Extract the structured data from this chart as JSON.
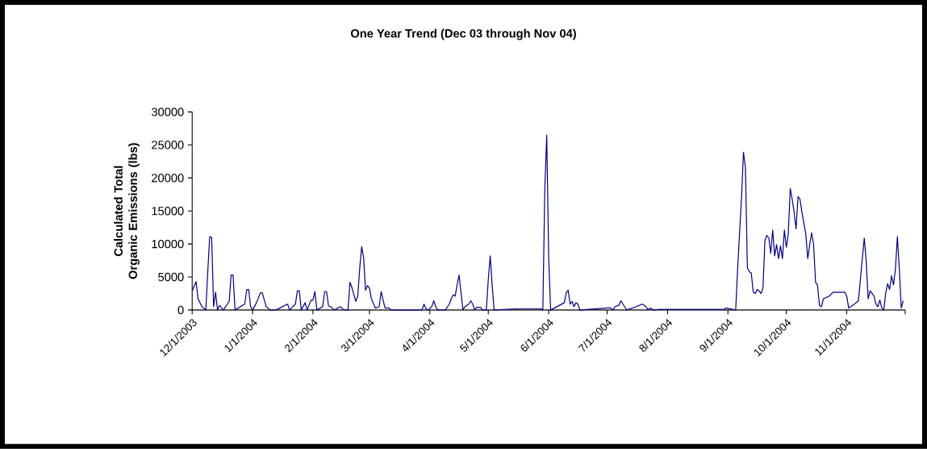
{
  "chart_data": {
    "type": "line",
    "title": "One Year Trend (Dec 03  through Nov 04)",
    "ylabel": "Calculated Total Organic Emissions (lbs)",
    "x": [
      "2003-12-01",
      "2003-12-03",
      "2003-12-04",
      "2003-12-06",
      "2003-12-08",
      "2003-12-09",
      "2003-12-10",
      "2003-12-11",
      "2003-12-12",
      "2003-12-13",
      "2003-12-14",
      "2003-12-15",
      "2003-12-17",
      "2003-12-20",
      "2003-12-21",
      "2003-12-22",
      "2003-12-23",
      "2003-12-28",
      "2003-12-29",
      "2003-12-30",
      "2003-12-31",
      "2004-01-01",
      "2004-01-03",
      "2004-01-05",
      "2004-01-06",
      "2004-01-08",
      "2004-01-10",
      "2004-01-13",
      "2004-01-19",
      "2004-01-20",
      "2004-01-23",
      "2004-01-24",
      "2004-01-25",
      "2004-01-26",
      "2004-01-28",
      "2004-01-29",
      "2004-01-31",
      "2004-02-01",
      "2004-02-02",
      "2004-02-03",
      "2004-02-06",
      "2004-02-07",
      "2004-02-08",
      "2004-02-09",
      "2004-02-10",
      "2004-02-12",
      "2004-02-15",
      "2004-02-17",
      "2004-02-19",
      "2004-02-20",
      "2004-02-21",
      "2004-02-23",
      "2004-02-24",
      "2004-02-25",
      "2004-02-26",
      "2004-02-27",
      "2004-02-28",
      "2004-02-29",
      "2004-03-01",
      "2004-03-02",
      "2004-03-04",
      "2004-03-06",
      "2004-03-07",
      "2004-03-08",
      "2004-03-09",
      "2004-03-11",
      "2004-03-12",
      "2004-03-28",
      "2004-03-29",
      "2004-03-30",
      "2004-03-31",
      "2004-04-02",
      "2004-04-03",
      "2004-04-04",
      "2004-04-05",
      "2004-04-09",
      "2004-04-11",
      "2004-04-12",
      "2004-04-13",
      "2004-04-14",
      "2004-04-15",
      "2004-04-16",
      "2004-04-17",
      "2004-04-18",
      "2004-04-19",
      "2004-04-21",
      "2004-04-22",
      "2004-04-23",
      "2004-04-24",
      "2004-04-25",
      "2004-04-27",
      "2004-04-28",
      "2004-04-30",
      "2004-05-01",
      "2004-05-02",
      "2004-05-03",
      "2004-05-04",
      "2004-05-17",
      "2004-05-28",
      "2004-05-29",
      "2004-05-30",
      "2004-05-31",
      "2004-06-01",
      "2004-06-02",
      "2004-06-09",
      "2004-06-10",
      "2004-06-11",
      "2004-06-12",
      "2004-06-13",
      "2004-06-14",
      "2004-06-15",
      "2004-06-16",
      "2004-06-17",
      "2004-07-01",
      "2004-07-03",
      "2004-07-04",
      "2004-07-05",
      "2004-07-07",
      "2004-07-08",
      "2004-07-10",
      "2004-07-11",
      "2004-07-16",
      "2004-07-19",
      "2004-07-21",
      "2004-07-22",
      "2004-07-23",
      "2004-07-25",
      "2004-07-28",
      "2004-08-30",
      "2004-08-31",
      "2004-09-05",
      "2004-09-06",
      "2004-09-07",
      "2004-09-08",
      "2004-09-09",
      "2004-09-10",
      "2004-09-11",
      "2004-09-12",
      "2004-09-13",
      "2004-09-14",
      "2004-09-15",
      "2004-09-16",
      "2004-09-17",
      "2004-09-18",
      "2004-09-19",
      "2004-09-20",
      "2004-09-21",
      "2004-09-22",
      "2004-09-23",
      "2004-09-24",
      "2004-09-25",
      "2004-09-26",
      "2004-09-27",
      "2004-09-28",
      "2004-09-29",
      "2004-09-30",
      "2004-10-01",
      "2004-10-02",
      "2004-10-03",
      "2004-10-04",
      "2004-10-05",
      "2004-10-06",
      "2004-10-07",
      "2004-10-08",
      "2004-10-09",
      "2004-10-11",
      "2004-10-12",
      "2004-10-13",
      "2004-10-14",
      "2004-10-15",
      "2004-10-16",
      "2004-10-17",
      "2004-10-18",
      "2004-10-19",
      "2004-10-20",
      "2004-10-23",
      "2004-10-25",
      "2004-10-28",
      "2004-10-31",
      "2004-11-01",
      "2004-11-02",
      "2004-11-03",
      "2004-11-05",
      "2004-11-07",
      "2004-11-08",
      "2004-11-09",
      "2004-11-10",
      "2004-11-11",
      "2004-11-12",
      "2004-11-13",
      "2004-11-15",
      "2004-11-16",
      "2004-11-17",
      "2004-11-18",
      "2004-11-19",
      "2004-11-20",
      "2004-11-21",
      "2004-11-22",
      "2004-11-23",
      "2004-11-24",
      "2004-11-25",
      "2004-11-26",
      "2004-11-27",
      "2004-11-28",
      "2004-11-29",
      "2004-11-30"
    ],
    "series": [
      {
        "color": "#000080",
        "values": [
          2900,
          4300,
          1700,
          500,
          0,
          5800,
          11100,
          11000,
          500,
          2700,
          0,
          700,
          0,
          1300,
          5300,
          5300,
          0,
          900,
          3100,
          3100,
          500,
          0,
          1100,
          2600,
          2600,
          500,
          0,
          0,
          900,
          0,
          900,
          2900,
          2900,
          0,
          1100,
          0,
          1500,
          1500,
          2800,
          0,
          500,
          2800,
          2800,
          600,
          500,
          0,
          500,
          0,
          0,
          4200,
          3400,
          1300,
          2100,
          6300,
          9600,
          7900,
          3000,
          3700,
          3300,
          1700,
          300,
          500,
          2800,
          1500,
          300,
          300,
          0,
          0,
          900,
          200,
          0,
          500,
          1400,
          500,
          0,
          0,
          900,
          1700,
          2300,
          2100,
          3800,
          5300,
          2600,
          0,
          500,
          900,
          1400,
          900,
          0,
          400,
          400,
          0,
          0,
          4600,
          8200,
          3700,
          0,
          200,
          200,
          0,
          18200,
          26500,
          8000,
          0,
          1100,
          2600,
          3000,
          900,
          1300,
          500,
          1100,
          900,
          0,
          300,
          300,
          0,
          500,
          700,
          1400,
          500,
          0,
          500,
          900,
          500,
          0,
          300,
          0,
          100,
          100,
          300,
          0,
          6200,
          11700,
          17000,
          23900,
          21600,
          6400,
          5800,
          5600,
          2700,
          2500,
          3100,
          2900,
          2500,
          3300,
          10500,
          11300,
          10900,
          8600,
          12100,
          8200,
          9900,
          7800,
          9700,
          7800,
          12100,
          9500,
          11500,
          18400,
          16800,
          14800,
          12300,
          17200,
          16800,
          14800,
          11500,
          7800,
          9900,
          11700,
          9900,
          4200,
          3800,
          700,
          500,
          1700,
          2100,
          2700,
          2700,
          2700,
          2100,
          300,
          500,
          900,
          1400,
          4600,
          7800,
          10900,
          7400,
          1700,
          2900,
          2100,
          900,
          500,
          1500,
          300,
          0,
          2500,
          4000,
          3100,
          5200,
          3800,
          6200,
          11100,
          6200,
          300,
          1400
        ]
      }
    ],
    "xlim": [
      "2003-12-01",
      "2004-12-01"
    ],
    "xticks": [
      {
        "value": "2003-12-01",
        "label": "12/1/2003"
      },
      {
        "value": "2004-01-01",
        "label": "1/1/2004"
      },
      {
        "value": "2004-02-01",
        "label": "2/1/2004"
      },
      {
        "value": "2004-03-01",
        "label": "3/1/2004"
      },
      {
        "value": "2004-04-01",
        "label": "4/1/2004"
      },
      {
        "value": "2004-05-01",
        "label": "5/1/2004"
      },
      {
        "value": "2004-06-01",
        "label": "6/1/2004"
      },
      {
        "value": "2004-07-01",
        "label": "7/1/2004"
      },
      {
        "value": "2004-08-01",
        "label": "8/1/2004"
      },
      {
        "value": "2004-09-01",
        "label": "9/1/2004"
      },
      {
        "value": "2004-10-01",
        "label": "10/1/2004"
      },
      {
        "value": "2004-11-01",
        "label": "11/1/2004"
      },
      {
        "value": "2004-12-01",
        "label": null
      }
    ],
    "ylim": [
      0,
      30000
    ],
    "yticks": [
      0,
      5000,
      10000,
      15000,
      20000,
      25000,
      30000
    ],
    "grid": false,
    "marker": "none",
    "line_style": "solid"
  }
}
